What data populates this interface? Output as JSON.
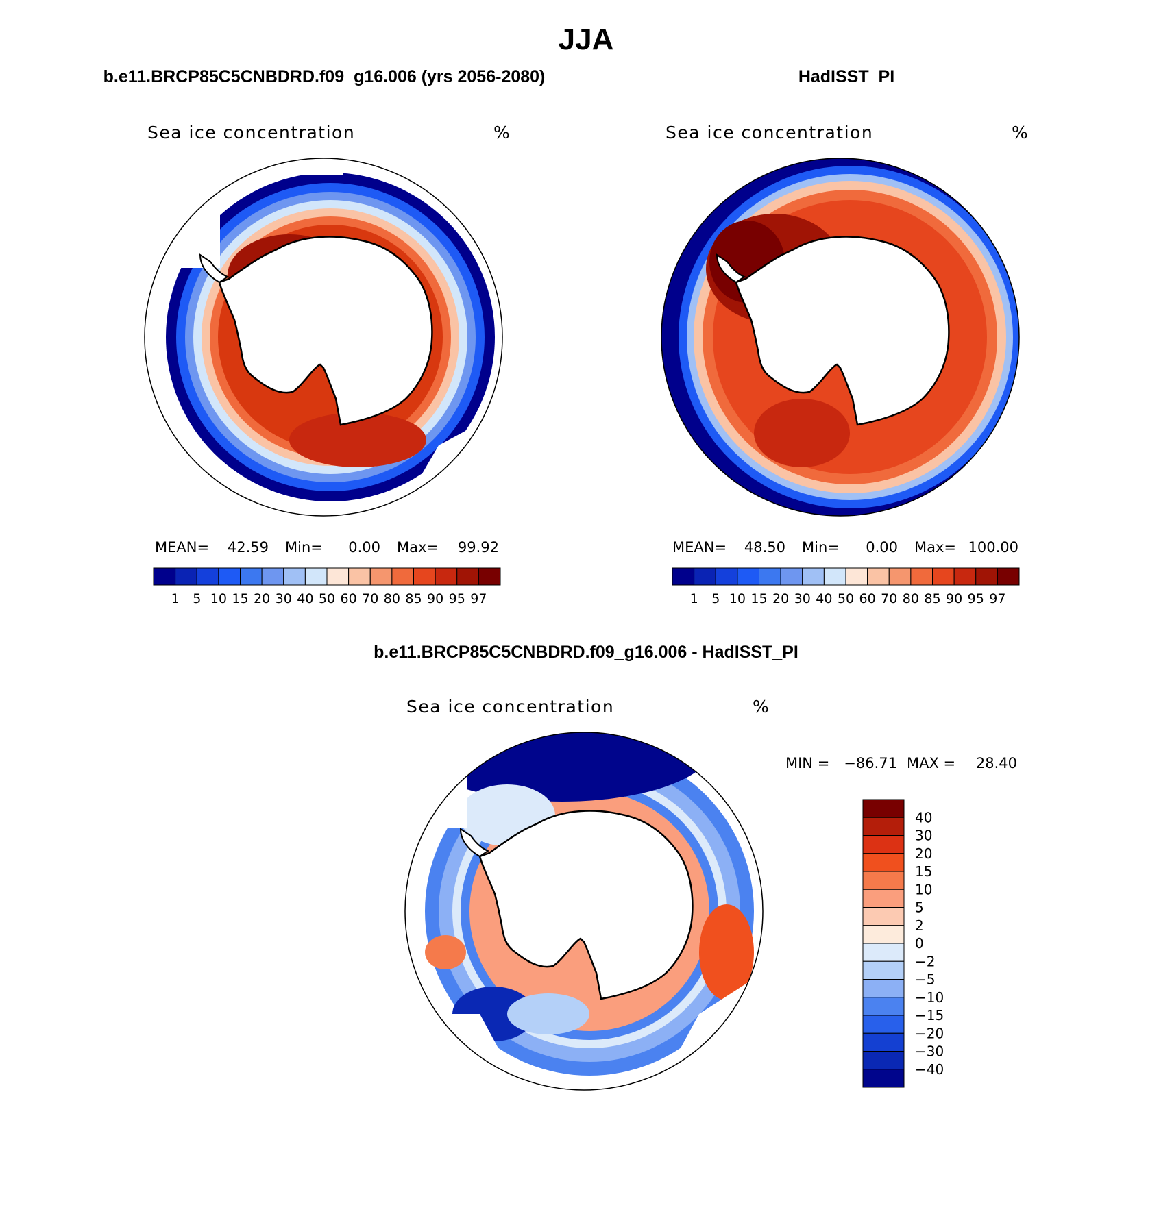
{
  "figure": {
    "title": "JJA",
    "panels": [
      {
        "id": "model",
        "heading": "b.e11.BRCP85C5CNBDRD.f09_g16.006 (yrs 2056-2080)",
        "variable": "Sea ice concentration",
        "units": "%",
        "stats": {
          "mean_label": "MEAN=",
          "mean": "42.59",
          "min_label": "Min=",
          "min": "0.00",
          "max_label": "Max=",
          "max": "99.92"
        }
      },
      {
        "id": "obs",
        "heading": "HadISST_PI",
        "variable": "Sea ice concentration",
        "units": "%",
        "stats": {
          "mean_label": "MEAN=",
          "mean": "48.50",
          "min_label": "Min=",
          "min": "0.00",
          "max_label": "Max=",
          "max": "100.00"
        }
      },
      {
        "id": "diff",
        "heading": "b.e11.BRCP85C5CNBDRD.f09_g16.006 - HadISST_PI",
        "variable": "Sea ice concentration",
        "units": "%",
        "minmax": {
          "min_label": "MIN =",
          "min": "−86.71",
          "max_label": "MAX =",
          "max": "28.40"
        }
      }
    ],
    "abs_colorbar": {
      "labels": [
        "1",
        "5",
        "10",
        "15",
        "20",
        "30",
        "40",
        "50",
        "60",
        "70",
        "80",
        "85",
        "90",
        "95",
        "97"
      ],
      "colors": [
        "#00008c",
        "#0a23b4",
        "#1440dc",
        "#1e5af5",
        "#3c78f0",
        "#6e96f0",
        "#a0c0f5",
        "#d2e6fa",
        "#fde6d7",
        "#fac3a5",
        "#f5966e",
        "#f06a3c",
        "#e6461e",
        "#c8280f",
        "#a01405",
        "#780000"
      ]
    },
    "diff_colorbar": {
      "labels": [
        "40",
        "30",
        "20",
        "15",
        "10",
        "5",
        "2",
        "0",
        "−2",
        "−5",
        "−10",
        "−15",
        "−20",
        "−30",
        "−40"
      ],
      "colors": [
        "#780000",
        "#b41e0a",
        "#dc3214",
        "#f0501e",
        "#f57a4b",
        "#fa9e7d",
        "#fccab2",
        "#fdebdc",
        "#dceafa",
        "#b4d0f8",
        "#8cb0f5",
        "#4b82f0",
        "#2860eb",
        "#1440d2",
        "#0a28b4",
        "#00058c"
      ]
    },
    "land_name": "Antarctica",
    "colors": {
      "land": "#ffffff",
      "coast": "#000000",
      "border": "#000000"
    }
  }
}
